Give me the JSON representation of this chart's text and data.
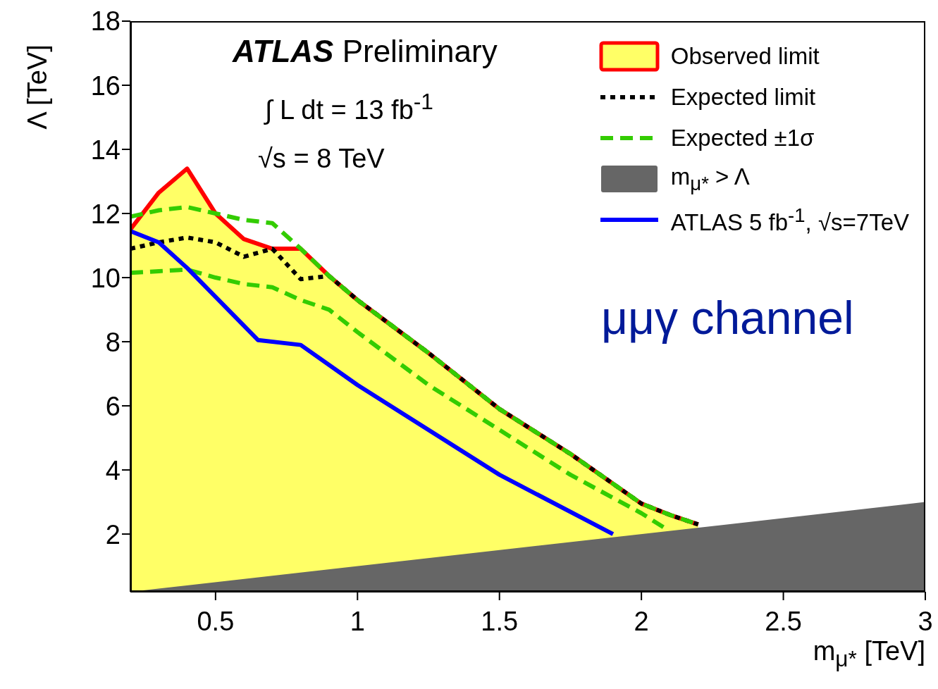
{
  "chart_data": {
    "type": "line",
    "title": "ATLAS",
    "subtitle": "Preliminary",
    "xlabel": "m$_{μ*}$ [TeV]",
    "ylabel": "Λ [TeV]",
    "annotations": [
      "∫ L dt = 13 fb$^{-1}$",
      "√s = 8 TeV",
      "μμγ channel"
    ],
    "xlim": [
      0.2,
      3
    ],
    "xticks": [
      0.5,
      1,
      1.5,
      2,
      2.5,
      3
    ],
    "ylim": [
      0.2,
      18
    ],
    "yticks": [
      2,
      4,
      6,
      8,
      10,
      12,
      14,
      16,
      18
    ],
    "grid": false,
    "legend": "top right",
    "series": [
      {
        "name": "Observed limit",
        "type": "area",
        "color": "#ff0000",
        "line_style": "solid",
        "x": [
          0.2,
          0.3,
          0.4,
          0.5,
          0.6,
          0.7,
          0.8,
          0.9,
          1.0,
          1.25,
          1.5,
          1.75,
          2.0,
          2.1,
          2.2
        ],
        "values": [
          11.5,
          12.65,
          13.4,
          12.0,
          11.2,
          10.9,
          10.9,
          10.05,
          9.3,
          7.65,
          5.9,
          4.5,
          2.95,
          2.6,
          2.3
        ]
      },
      {
        "name": "Expected limit",
        "color": "#000000",
        "line_style": "dotted",
        "x": [
          0.2,
          0.3,
          0.4,
          0.5,
          0.6,
          0.7,
          0.8,
          0.9,
          1.0,
          1.25,
          1.5,
          1.75,
          2.0,
          2.1,
          2.2
        ],
        "values": [
          10.9,
          11.1,
          11.25,
          11.1,
          10.65,
          10.9,
          9.95,
          10.05,
          9.3,
          7.65,
          5.9,
          4.5,
          2.95,
          2.6,
          2.3
        ]
      },
      {
        "name": "Expected ±1σ",
        "color": "#33cc00",
        "line_style": "dashed",
        "x": [
          0.2,
          0.3,
          0.4,
          0.5,
          0.6,
          0.7,
          0.8,
          0.9,
          1.0,
          1.25,
          1.5,
          1.75,
          2.0,
          2.1,
          2.2
        ],
        "values": [
          11.9,
          12.1,
          12.2,
          12.0,
          11.8,
          11.7,
          10.9,
          10.05,
          9.3,
          7.65,
          5.9,
          4.5,
          2.95,
          2.6,
          2.3
        ]
      },
      {
        "color": "#33cc00",
        "line_style": "dashed",
        "x": [
          0.2,
          0.3,
          0.4,
          0.5,
          0.6,
          0.7,
          0.8,
          0.9,
          1.0,
          1.25,
          1.5,
          1.75,
          2.0,
          2.08
        ],
        "values": [
          10.15,
          10.2,
          10.25,
          10.0,
          9.8,
          9.7,
          9.3,
          9.0,
          8.3,
          6.65,
          5.25,
          3.85,
          2.65,
          2.2
        ]
      },
      {
        "name": "m$_{μ*}$ > Λ",
        "type": "area",
        "color": "#666666",
        "x": [
          0.2,
          3
        ],
        "values": [
          0.2,
          3.0
        ]
      },
      {
        "name": "ATLAS 5 fb$^{-1}$, √s=7TeV",
        "color": "#0000ff",
        "line_style": "solid",
        "x": [
          0.2,
          0.3,
          0.4,
          0.5,
          0.65,
          0.8,
          1.0,
          1.5,
          1.9
        ],
        "values": [
          11.45,
          11.1,
          10.3,
          9.4,
          8.05,
          7.9,
          6.65,
          3.85,
          2.0
        ]
      }
    ]
  }
}
